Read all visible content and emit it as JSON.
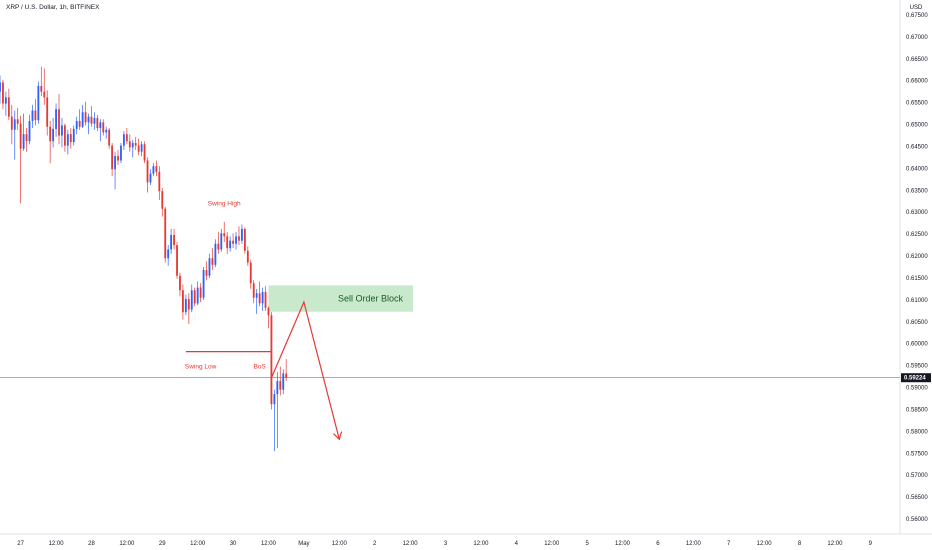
{
  "header": {
    "symbol_title": "XRP / U.S. Dollar, 1h, BITFINEX",
    "currency": "USD"
  },
  "colors": {
    "bull": "#2962ff",
    "bear": "#e53935",
    "annotation": "#e53935",
    "zone_fill": "#b7e1bc",
    "zone_text": "#1b5e20",
    "price_label_bg": "#131722"
  },
  "chart_data": {
    "type": "candlestick",
    "title": "XRP / U.S. Dollar, 1h, BITFINEX",
    "ylim": [
      0.5575,
      0.6775
    ],
    "y_ticks": [
      "0.67500",
      "0.67000",
      "0.66500",
      "0.66000",
      "0.65500",
      "0.65000",
      "0.64500",
      "0.64000",
      "0.63500",
      "0.63000",
      "0.62500",
      "0.62000",
      "0.61500",
      "0.61000",
      "0.60500",
      "0.60000",
      "0.59500",
      "0.59000",
      "0.58500",
      "0.58000",
      "0.57500",
      "0.57000",
      "0.56500",
      "0.56000"
    ],
    "y_tick_values": [
      0.675,
      0.67,
      0.665,
      0.66,
      0.655,
      0.65,
      0.645,
      0.64,
      0.635,
      0.63,
      0.625,
      0.62,
      0.615,
      0.61,
      0.605,
      0.6,
      0.595,
      0.59,
      0.585,
      0.58,
      0.575,
      0.57,
      0.565,
      0.56
    ],
    "x_tick_labels": [
      "27",
      "12:00",
      "28",
      "12:00",
      "29",
      "12:00",
      "30",
      "12:00",
      "May",
      "12:00",
      "2",
      "12:00",
      "3",
      "12:00",
      "4",
      "12:00",
      "5",
      "12:00",
      "6",
      "12:00",
      "7",
      "12:00",
      "8",
      "12:00",
      "9"
    ],
    "x_tick_hours": [
      0,
      12,
      24,
      36,
      48,
      60,
      72,
      84,
      96,
      108,
      120,
      132,
      144,
      156,
      168,
      180,
      192,
      204,
      216,
      228,
      240,
      252,
      264,
      276,
      288
    ],
    "x_hour_range": [
      -7,
      295
    ],
    "current_price": 0.59224,
    "current_price_label": "0.59224",
    "candles": [
      [
        -7,
        0.6575,
        0.6612,
        0.6548,
        0.6596
      ],
      [
        -6,
        0.6596,
        0.6602,
        0.6535,
        0.6548
      ],
      [
        -5,
        0.6548,
        0.6575,
        0.652,
        0.6562
      ],
      [
        -4,
        0.6562,
        0.6582,
        0.651,
        0.6518
      ],
      [
        -3,
        0.6518,
        0.6545,
        0.6455,
        0.6488
      ],
      [
        -2,
        0.6488,
        0.6532,
        0.642,
        0.6512
      ],
      [
        -1,
        0.6512,
        0.6538,
        0.6488,
        0.6502
      ],
      [
        0,
        0.6502,
        0.652,
        0.632,
        0.6445
      ],
      [
        1,
        0.6445,
        0.6525,
        0.644,
        0.6478
      ],
      [
        2,
        0.6478,
        0.6492,
        0.6438,
        0.6462
      ],
      [
        3,
        0.6462,
        0.6522,
        0.6455,
        0.6508
      ],
      [
        4,
        0.6508,
        0.6545,
        0.6492,
        0.6532
      ],
      [
        5,
        0.6532,
        0.6558,
        0.6498,
        0.651
      ],
      [
        6,
        0.651,
        0.6598,
        0.6502,
        0.6588
      ],
      [
        7,
        0.6588,
        0.6632,
        0.6565,
        0.6575
      ],
      [
        8,
        0.6575,
        0.6628,
        0.6545,
        0.6562
      ],
      [
        9,
        0.6562,
        0.6578,
        0.6475,
        0.6495
      ],
      [
        10,
        0.6495,
        0.6508,
        0.6412,
        0.6462
      ],
      [
        11,
        0.6462,
        0.6515,
        0.6448,
        0.649
      ],
      [
        12,
        0.649,
        0.6548,
        0.6472,
        0.6535
      ],
      [
        13,
        0.6535,
        0.657,
        0.6455,
        0.6475
      ],
      [
        14,
        0.6475,
        0.6515,
        0.6448,
        0.6498
      ],
      [
        15,
        0.6498,
        0.6502,
        0.6438,
        0.6452
      ],
      [
        16,
        0.6452,
        0.6488,
        0.6432,
        0.6478
      ],
      [
        17,
        0.6478,
        0.6492,
        0.6445,
        0.646
      ],
      [
        18,
        0.646,
        0.6498,
        0.6452,
        0.649
      ],
      [
        19,
        0.649,
        0.6518,
        0.6478,
        0.6508
      ],
      [
        20,
        0.6508,
        0.6535,
        0.6488,
        0.6495
      ],
      [
        21,
        0.6495,
        0.6545,
        0.6492,
        0.6528
      ],
      [
        22,
        0.6528,
        0.6552,
        0.6498,
        0.6505
      ],
      [
        23,
        0.6505,
        0.6525,
        0.6478,
        0.6518
      ],
      [
        24,
        0.6518,
        0.6542,
        0.6495,
        0.6502
      ],
      [
        25,
        0.6502,
        0.6528,
        0.6488,
        0.6515
      ],
      [
        26,
        0.6515,
        0.6522,
        0.6485,
        0.6492
      ],
      [
        27,
        0.6492,
        0.6512,
        0.6462,
        0.6505
      ],
      [
        28,
        0.6505,
        0.6512,
        0.6475,
        0.6482
      ],
      [
        29,
        0.6482,
        0.6495,
        0.6468,
        0.6488
      ],
      [
        30,
        0.6488,
        0.6492,
        0.6445,
        0.6452
      ],
      [
        31,
        0.6452,
        0.6458,
        0.6382,
        0.6398
      ],
      [
        32,
        0.6398,
        0.6438,
        0.6352,
        0.6428
      ],
      [
        33,
        0.6428,
        0.6442,
        0.6408,
        0.6418
      ],
      [
        34,
        0.6418,
        0.6458,
        0.6412,
        0.6452
      ],
      [
        35,
        0.6452,
        0.6485,
        0.6442,
        0.6478
      ],
      [
        36,
        0.6478,
        0.6492,
        0.6455,
        0.6462
      ],
      [
        37,
        0.6462,
        0.6478,
        0.6438,
        0.6448
      ],
      [
        38,
        0.6448,
        0.6465,
        0.6425,
        0.6458
      ],
      [
        39,
        0.6458,
        0.6472,
        0.6442,
        0.6452
      ],
      [
        40,
        0.6452,
        0.6468,
        0.643,
        0.6438
      ],
      [
        41,
        0.6438,
        0.6462,
        0.6428,
        0.6455
      ],
      [
        42,
        0.6455,
        0.6462,
        0.6412,
        0.6418
      ],
      [
        43,
        0.6418,
        0.6425,
        0.6345,
        0.6368
      ],
      [
        44,
        0.6368,
        0.6398,
        0.6362,
        0.6388
      ],
      [
        45,
        0.6388,
        0.6412,
        0.6382,
        0.6405
      ],
      [
        46,
        0.6405,
        0.6418,
        0.6382,
        0.6392
      ],
      [
        47,
        0.6392,
        0.6405,
        0.6328,
        0.6348
      ],
      [
        48,
        0.6348,
        0.6355,
        0.629,
        0.6308
      ],
      [
        49,
        0.6308,
        0.6312,
        0.6185,
        0.6195
      ],
      [
        50,
        0.6195,
        0.6225,
        0.6178,
        0.6215
      ],
      [
        51,
        0.6215,
        0.6262,
        0.6205,
        0.6248
      ],
      [
        52,
        0.6248,
        0.6262,
        0.6215,
        0.6225
      ],
      [
        53,
        0.6225,
        0.6232,
        0.6148,
        0.6155
      ],
      [
        54,
        0.6155,
        0.6162,
        0.6108,
        0.6122
      ],
      [
        55,
        0.6122,
        0.6135,
        0.6055,
        0.6072
      ],
      [
        56,
        0.6072,
        0.6112,
        0.6065,
        0.6102
      ],
      [
        57,
        0.6102,
        0.6115,
        0.6045,
        0.6078
      ],
      [
        58,
        0.6078,
        0.6135,
        0.6072,
        0.6122
      ],
      [
        59,
        0.6122,
        0.6128,
        0.6085,
        0.6092
      ],
      [
        60,
        0.6092,
        0.6142,
        0.6088,
        0.6128
      ],
      [
        61,
        0.6128,
        0.6138,
        0.6095,
        0.6105
      ],
      [
        62,
        0.6105,
        0.6175,
        0.61,
        0.6168
      ],
      [
        63,
        0.6168,
        0.6188,
        0.6145,
        0.6155
      ],
      [
        64,
        0.6155,
        0.6205,
        0.615,
        0.6195
      ],
      [
        65,
        0.6195,
        0.6218,
        0.6168,
        0.618
      ],
      [
        66,
        0.618,
        0.6238,
        0.6175,
        0.6228
      ],
      [
        67,
        0.6228,
        0.6255,
        0.6205,
        0.6215
      ],
      [
        68,
        0.6215,
        0.6262,
        0.621,
        0.6252
      ],
      [
        69,
        0.6252,
        0.6278,
        0.6232,
        0.6245
      ],
      [
        70,
        0.6245,
        0.6255,
        0.6205,
        0.6218
      ],
      [
        71,
        0.6218,
        0.6245,
        0.621,
        0.6235
      ],
      [
        72,
        0.6235,
        0.6252,
        0.6218,
        0.6228
      ],
      [
        73,
        0.6228,
        0.6255,
        0.6215,
        0.6245
      ],
      [
        74,
        0.6245,
        0.6268,
        0.6225,
        0.6235
      ],
      [
        75,
        0.6235,
        0.6272,
        0.6228,
        0.6262
      ],
      [
        76,
        0.6262,
        0.6265,
        0.6205,
        0.6212
      ],
      [
        77,
        0.6212,
        0.6222,
        0.6178,
        0.6185
      ],
      [
        78,
        0.6185,
        0.6192,
        0.6125,
        0.6138
      ],
      [
        79,
        0.6138,
        0.6145,
        0.6092,
        0.6105
      ],
      [
        80,
        0.6105,
        0.6125,
        0.6068,
        0.6115
      ],
      [
        81,
        0.6115,
        0.6142,
        0.6085,
        0.6092
      ],
      [
        82,
        0.6092,
        0.6128,
        0.6075,
        0.6118
      ],
      [
        83,
        0.6118,
        0.6132,
        0.6075,
        0.6082
      ],
      [
        84,
        0.6082,
        0.6085,
        0.6035,
        0.6065
      ],
      [
        85,
        0.6065,
        0.6072,
        0.585,
        0.5862
      ],
      [
        86,
        0.5862,
        0.5895,
        0.5755,
        0.5885
      ],
      [
        87,
        0.5885,
        0.5935,
        0.5762,
        0.5915
      ],
      [
        88,
        0.5915,
        0.5948,
        0.5882,
        0.5895
      ],
      [
        89,
        0.5895,
        0.5942,
        0.5885,
        0.5932
      ],
      [
        90,
        0.5932,
        0.5965,
        0.5915,
        0.5922
      ]
    ]
  },
  "annotations": {
    "swing_high": "Swing High",
    "swing_low": "Swing Low",
    "bos": "BoS",
    "sell_order_block": "Sell Order Block",
    "swing_low_line": {
      "start_hour": 56,
      "end_hour": 85,
      "price": 0.5982
    },
    "zone": {
      "start_hour": 84,
      "end_hour": 133,
      "top_price": 0.6133,
      "bottom_price": 0.6073
    },
    "projection_path": [
      [
        85,
        0.5922
      ],
      [
        96,
        0.6095
      ],
      [
        108,
        0.5782
      ]
    ]
  }
}
